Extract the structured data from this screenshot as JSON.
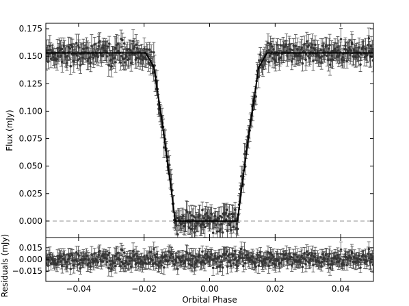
{
  "chart_data": [
    {
      "type": "scatter",
      "title": "",
      "xlabel": "",
      "ylabel": "Flux (mJy)",
      "xlim": [
        -0.05,
        0.05
      ],
      "ylim": [
        -0.015,
        0.18
      ],
      "xticks": [
        "−0.04",
        "−0.02",
        "0.00",
        "0.02",
        "0.04"
      ],
      "xtick_values": [
        -0.04,
        -0.02,
        0.0,
        0.02,
        0.04
      ],
      "yticks": [
        "0.000",
        "0.025",
        "0.050",
        "0.075",
        "0.100",
        "0.125",
        "0.150",
        "0.175"
      ],
      "ytick_values": [
        0.0,
        0.025,
        0.05,
        0.075,
        0.1,
        0.125,
        0.15,
        0.175
      ],
      "grid": false,
      "legend": "none",
      "reference_line": {
        "y": 0.0,
        "style": "dashed",
        "color": "#999999"
      },
      "model": {
        "style": "line",
        "color": "#000000",
        "x": [
          -0.05,
          -0.0195,
          -0.017,
          -0.0145,
          -0.012,
          -0.0105,
          0.0085,
          0.01,
          0.0125,
          0.015,
          0.0175,
          0.05
        ],
        "y": [
          0.153,
          0.153,
          0.14,
          0.09,
          0.035,
          0.0,
          0.0,
          0.035,
          0.09,
          0.14,
          0.153,
          0.153
        ]
      },
      "data_points": {
        "style": "points_with_errorbars",
        "marker_color": "#333333",
        "errorbar_color": "#444444",
        "x_range": [
          -0.05,
          0.05
        ],
        "count": 520,
        "typical_error": 0.008,
        "scatter": 0.005,
        "follows": "model"
      }
    },
    {
      "type": "scatter",
      "title": "",
      "xlabel": "Orbital Phase",
      "ylabel": "Residuals (mJy)",
      "xlim": [
        -0.05,
        0.05
      ],
      "ylim": [
        -0.028,
        0.028
      ],
      "xticks": [
        "−0.04",
        "−0.02",
        "0.00",
        "0.02",
        "0.04"
      ],
      "xtick_values": [
        -0.04,
        -0.02,
        0.0,
        0.02,
        0.04
      ],
      "yticks": [
        "0.015",
        "0.000",
        "−0.015"
      ],
      "ytick_values": [
        0.015,
        0.0,
        -0.015
      ],
      "grid": false,
      "legend": "none",
      "data_points": {
        "style": "points_with_errorbars",
        "marker_color": "#333333",
        "errorbar_color": "#444444",
        "x_range": [
          -0.05,
          0.05
        ],
        "count": 520,
        "typical_error": 0.008,
        "scatter": 0.005,
        "center": 0.0
      }
    }
  ]
}
